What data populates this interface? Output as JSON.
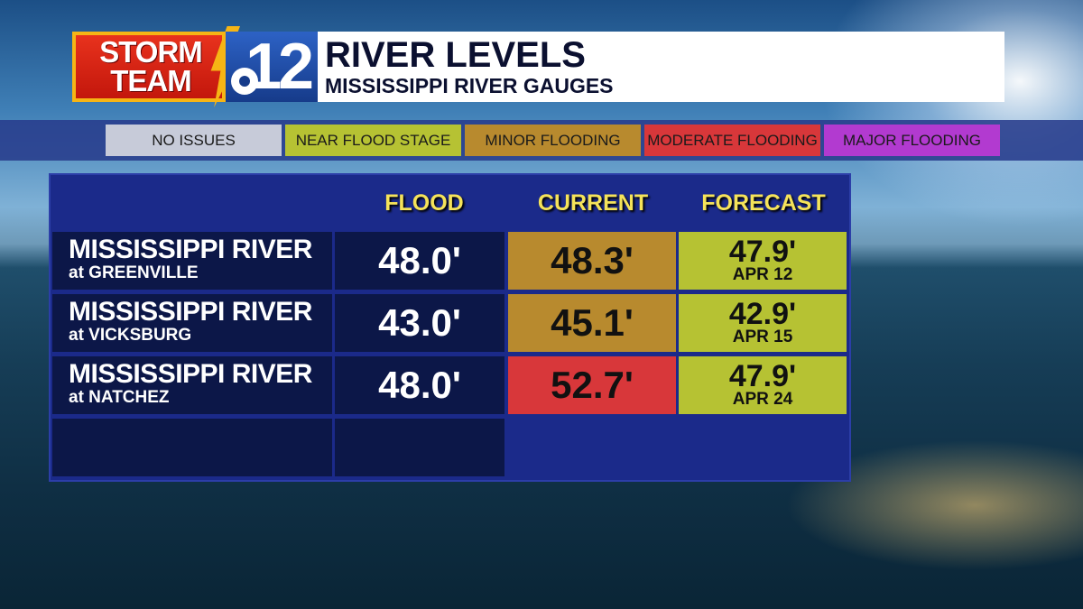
{
  "logo": {
    "storm": "STORM",
    "team": "TEAM",
    "channel": "12",
    "brand_colors": {
      "red": "#d8241a",
      "gold": "#f6b515",
      "blue": "#2150a8"
    }
  },
  "header": {
    "title": "RIVER LEVELS",
    "subtitle": "MISSISSIPPI RIVER GAUGES"
  },
  "legend": [
    {
      "label": "NO ISSUES",
      "color": "#c7cbd9"
    },
    {
      "label": "NEAR FLOOD STAGE",
      "color": "#b6c233"
    },
    {
      "label": "MINOR FLOODING",
      "color": "#b88a2e"
    },
    {
      "label": "MODERATE FLOODING",
      "color": "#d8373a"
    },
    {
      "label": "MAJOR FLOODING",
      "color": "#b23ad0"
    }
  ],
  "table": {
    "headers": {
      "flood": "FLOOD",
      "current": "CURRENT",
      "forecast": "FORECAST"
    },
    "rows": [
      {
        "river": "MISSISSIPPI RIVER",
        "site": "at GREENVILLE",
        "flood": "48.0'",
        "current": "48.3'",
        "current_color": "#b88a2e",
        "forecast": "47.9'",
        "forecast_date": "APR 12"
      },
      {
        "river": "MISSISSIPPI RIVER",
        "site": "at VICKSBURG",
        "flood": "43.0'",
        "current": "45.1'",
        "current_color": "#b88a2e",
        "forecast": "42.9'",
        "forecast_date": "APR 15"
      },
      {
        "river": "MISSISSIPPI RIVER",
        "site": "at NATCHEZ",
        "flood": "48.0'",
        "current": "52.7'",
        "current_color": "#d8373a",
        "forecast": "47.9'",
        "forecast_date": "APR 24"
      }
    ]
  }
}
